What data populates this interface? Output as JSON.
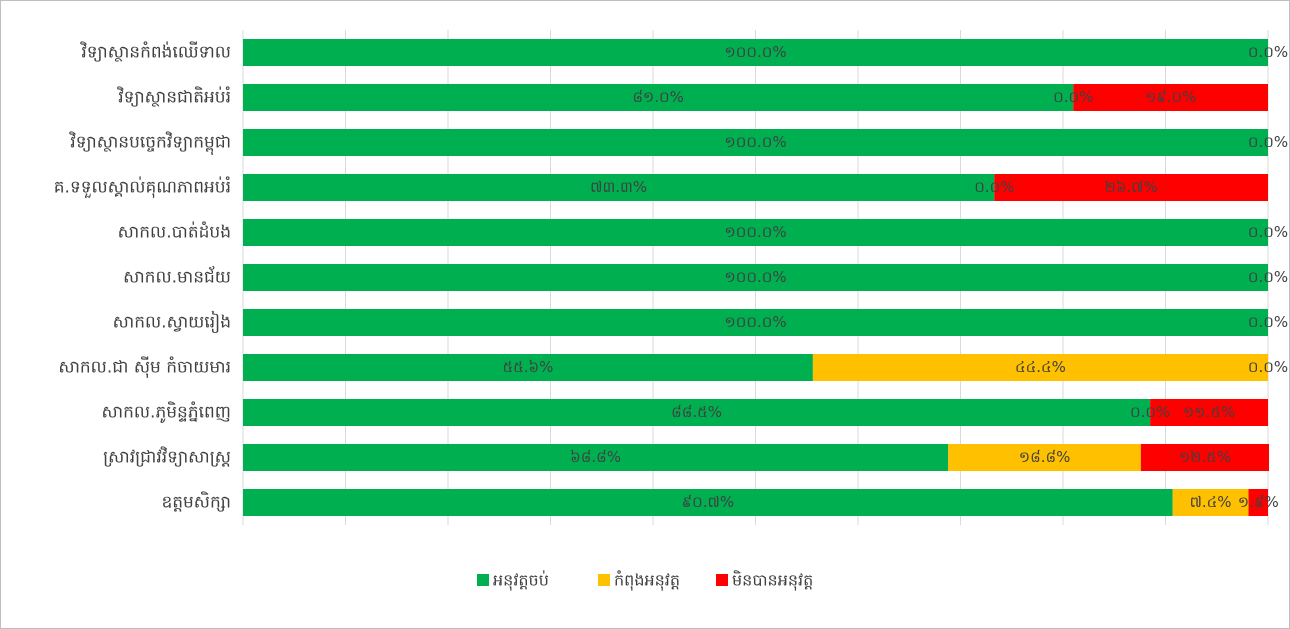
{
  "chart_data": {
    "type": "stacked_bar_horizontal",
    "categories": [
      "វិទ្យាស្ថានកំពង់ឈើទាល",
      "វិទ្យាស្ថានជាតិអប់រំ",
      "វិទ្យាស្ថានបច្ចេកវិទ្យាកម្ពុជា",
      "គ.ទទួលស្គាល់គុណភាពអប់រំ",
      "សាកល.បាត់ដំបង",
      "សាកល.មានជ័យ",
      "សាកល.ស្វាយរៀង",
      "សាកល.ជា ស៊ីម កំចាយមារ",
      "សាកល.ភូមិន្ទភ្នំពេញ",
      "ស្រាវជ្រាវវិទ្យាសាស្ត្រ",
      "ឧត្តមសិក្សា"
    ],
    "series": [
      {
        "name": "អនុវត្តចប់",
        "color": "#00b050",
        "values": [
          100.0,
          81.0,
          100.0,
          73.3,
          100.0,
          100.0,
          100.0,
          55.6,
          88.5,
          68.8,
          90.7
        ],
        "value_labels": [
          "១០០.០%",
          "៨១.០%",
          "១០០.០%",
          "៧៣.៣%",
          "១០០.០%",
          "១០០.០%",
          "១០០.០%",
          "៥៥.៦%",
          "៨៨.៥%",
          "៦៨.៨%",
          "៩០.៧%"
        ]
      },
      {
        "name": "កំពុងអនុវត្ត",
        "color": "#ffc000",
        "values": [
          0.0,
          0.0,
          0.0,
          0.0,
          0.0,
          0.0,
          0.0,
          44.4,
          0.0,
          18.8,
          7.4
        ],
        "value_labels": [
          null,
          "០.០%",
          null,
          "០.០%",
          null,
          null,
          null,
          "៤៤.៤%",
          "០.០%",
          "១៨.៨%",
          "៧.៤%"
        ]
      },
      {
        "name": "មិនបានអនុវត្ត",
        "color": "#ff0000",
        "values": [
          0.0,
          19.0,
          0.0,
          26.7,
          0.0,
          0.0,
          0.0,
          0.0,
          11.5,
          12.5,
          1.9
        ],
        "value_labels": [
          "០.០%",
          "១៩.០%",
          "០.០%",
          "២៦.៧%",
          "០.០%",
          "០.០%",
          "០.០%",
          "០.០%",
          "១១.៥%",
          "១២.៥%",
          "១.៩%"
        ]
      }
    ],
    "xlim": [
      0,
      100
    ],
    "xticks": [
      0,
      10,
      20,
      30,
      40,
      50,
      60,
      70,
      80,
      90,
      100
    ],
    "grid": true,
    "legend": "bottom"
  }
}
